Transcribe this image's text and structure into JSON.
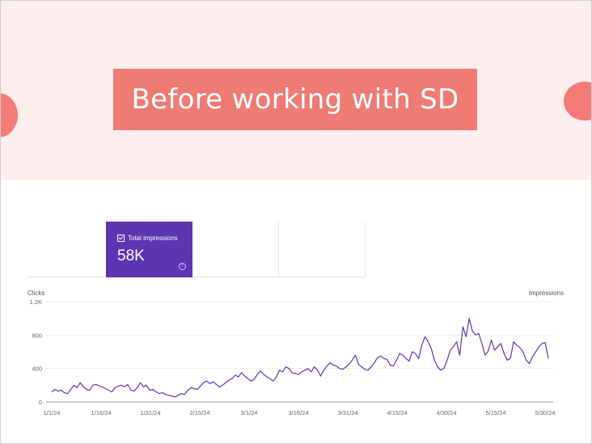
{
  "banner": {
    "title": "Before working with SD",
    "accent_color": "#ee7b74",
    "background_color": "#fdeeee"
  },
  "metric_card": {
    "label": "Total impressions",
    "value": "58K",
    "help_icon": "help-circle-icon",
    "checkbox_icon": "checkbox-checked-icon",
    "color": "#5e35b1"
  },
  "chart_data": {
    "type": "line",
    "left_axis_title": "Clicks",
    "right_axis_title": "Impressions",
    "y_ticks": [
      "0",
      "400",
      "800",
      "1.2K"
    ],
    "ylim": [
      0,
      1200
    ],
    "x_ticks": [
      "1/1/24",
      "1/16/24",
      "1/31/24",
      "2/15/24",
      "3/1/24",
      "3/16/24",
      "3/31/24",
      "4/15/24",
      "4/30/24",
      "5/15/24",
      "5/30/24"
    ],
    "grid": true,
    "line_color": "#5e35b1",
    "series": [
      {
        "values": [
          120,
          150,
          130,
          140,
          110,
          100,
          150,
          200,
          170,
          230,
          180,
          150,
          140,
          200,
          210,
          190,
          180,
          160,
          140,
          120,
          170,
          190,
          200,
          180,
          210,
          140,
          130,
          170,
          230,
          180,
          200,
          140,
          150,
          120,
          100,
          110,
          90,
          80,
          70,
          60,
          80,
          100,
          90,
          140,
          170,
          160,
          150,
          190,
          230,
          250,
          220,
          240,
          210,
          180,
          200,
          230,
          260,
          280,
          320,
          300,
          350,
          310,
          280,
          250,
          270,
          330,
          370,
          330,
          300,
          280,
          250,
          300,
          380,
          360,
          420,
          400,
          350,
          340,
          330,
          360,
          380,
          400,
          360,
          420,
          380,
          310,
          380,
          430,
          470,
          440,
          430,
          400,
          390,
          420,
          450,
          500,
          560,
          450,
          420,
          390,
          380,
          420,
          470,
          530,
          550,
          520,
          510,
          440,
          430,
          500,
          580,
          560,
          520,
          490,
          600,
          580,
          520,
          680,
          780,
          720,
          640,
          500,
          420,
          380,
          400,
          500,
          620,
          660,
          720,
          560,
          900,
          780,
          1000,
          850,
          800,
          820,
          700,
          560,
          610,
          740,
          620,
          660,
          700,
          580,
          500,
          520,
          720,
          680,
          650,
          600,
          500,
          460,
          540,
          600,
          660,
          700,
          710,
          520
        ]
      }
    ]
  }
}
